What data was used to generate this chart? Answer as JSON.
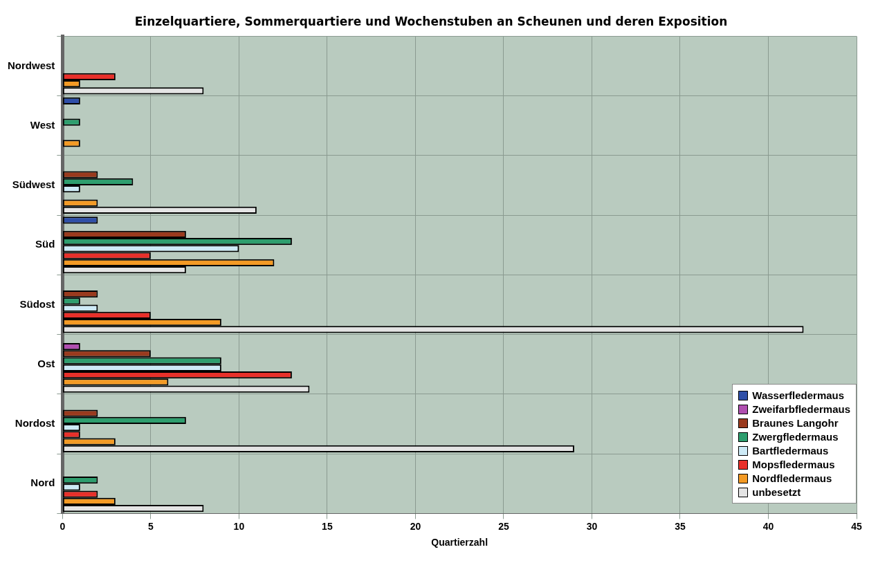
{
  "chart_data": {
    "type": "bar",
    "orientation": "horizontal",
    "title": "Einzelquartiere, Sommerquartiere und Wochenstuben an Scheunen und deren Exposition",
    "xlabel": "Quartierzahl",
    "categories": [
      "Nordwest",
      "West",
      "Südwest",
      "Süd",
      "Südost",
      "Ost",
      "Nordost",
      "Nord"
    ],
    "series": [
      {
        "name": "Wasserfledermaus",
        "color": "#2f4fa8",
        "values": [
          0,
          1,
          0,
          2,
          0,
          0,
          0,
          0
        ]
      },
      {
        "name": "Zweifarbfledermaus",
        "color": "#b04fb0",
        "values": [
          0,
          0,
          0,
          0,
          0,
          1,
          0,
          0
        ]
      },
      {
        "name": "Braunes Langohr",
        "color": "#9a3a1e",
        "values": [
          0,
          0,
          2,
          7,
          2,
          5,
          2,
          0
        ]
      },
      {
        "name": "Zwergfledermaus",
        "color": "#2e9e6e",
        "values": [
          0,
          1,
          4,
          13,
          1,
          9,
          7,
          2
        ]
      },
      {
        "name": "Bartfledermaus",
        "color": "#cdeaf6",
        "values": [
          0,
          0,
          1,
          10,
          2,
          9,
          1,
          1
        ]
      },
      {
        "name": "Mopsfledermaus",
        "color": "#e8302a",
        "values": [
          3,
          0,
          0,
          5,
          5,
          13,
          1,
          2
        ]
      },
      {
        "name": "Nordfledermaus",
        "color": "#f39a25",
        "values": [
          1,
          1,
          2,
          12,
          9,
          6,
          3,
          3
        ]
      },
      {
        "name": "unbesetzt",
        "color": "#e4e4e4",
        "values": [
          8,
          0,
          11,
          7,
          42,
          14,
          29,
          8
        ]
      }
    ],
    "xlim": [
      0,
      45
    ],
    "xticks": [
      0,
      5,
      10,
      15,
      20,
      25,
      30,
      35,
      40,
      45
    ],
    "grid": true,
    "legend": "bottom right"
  }
}
